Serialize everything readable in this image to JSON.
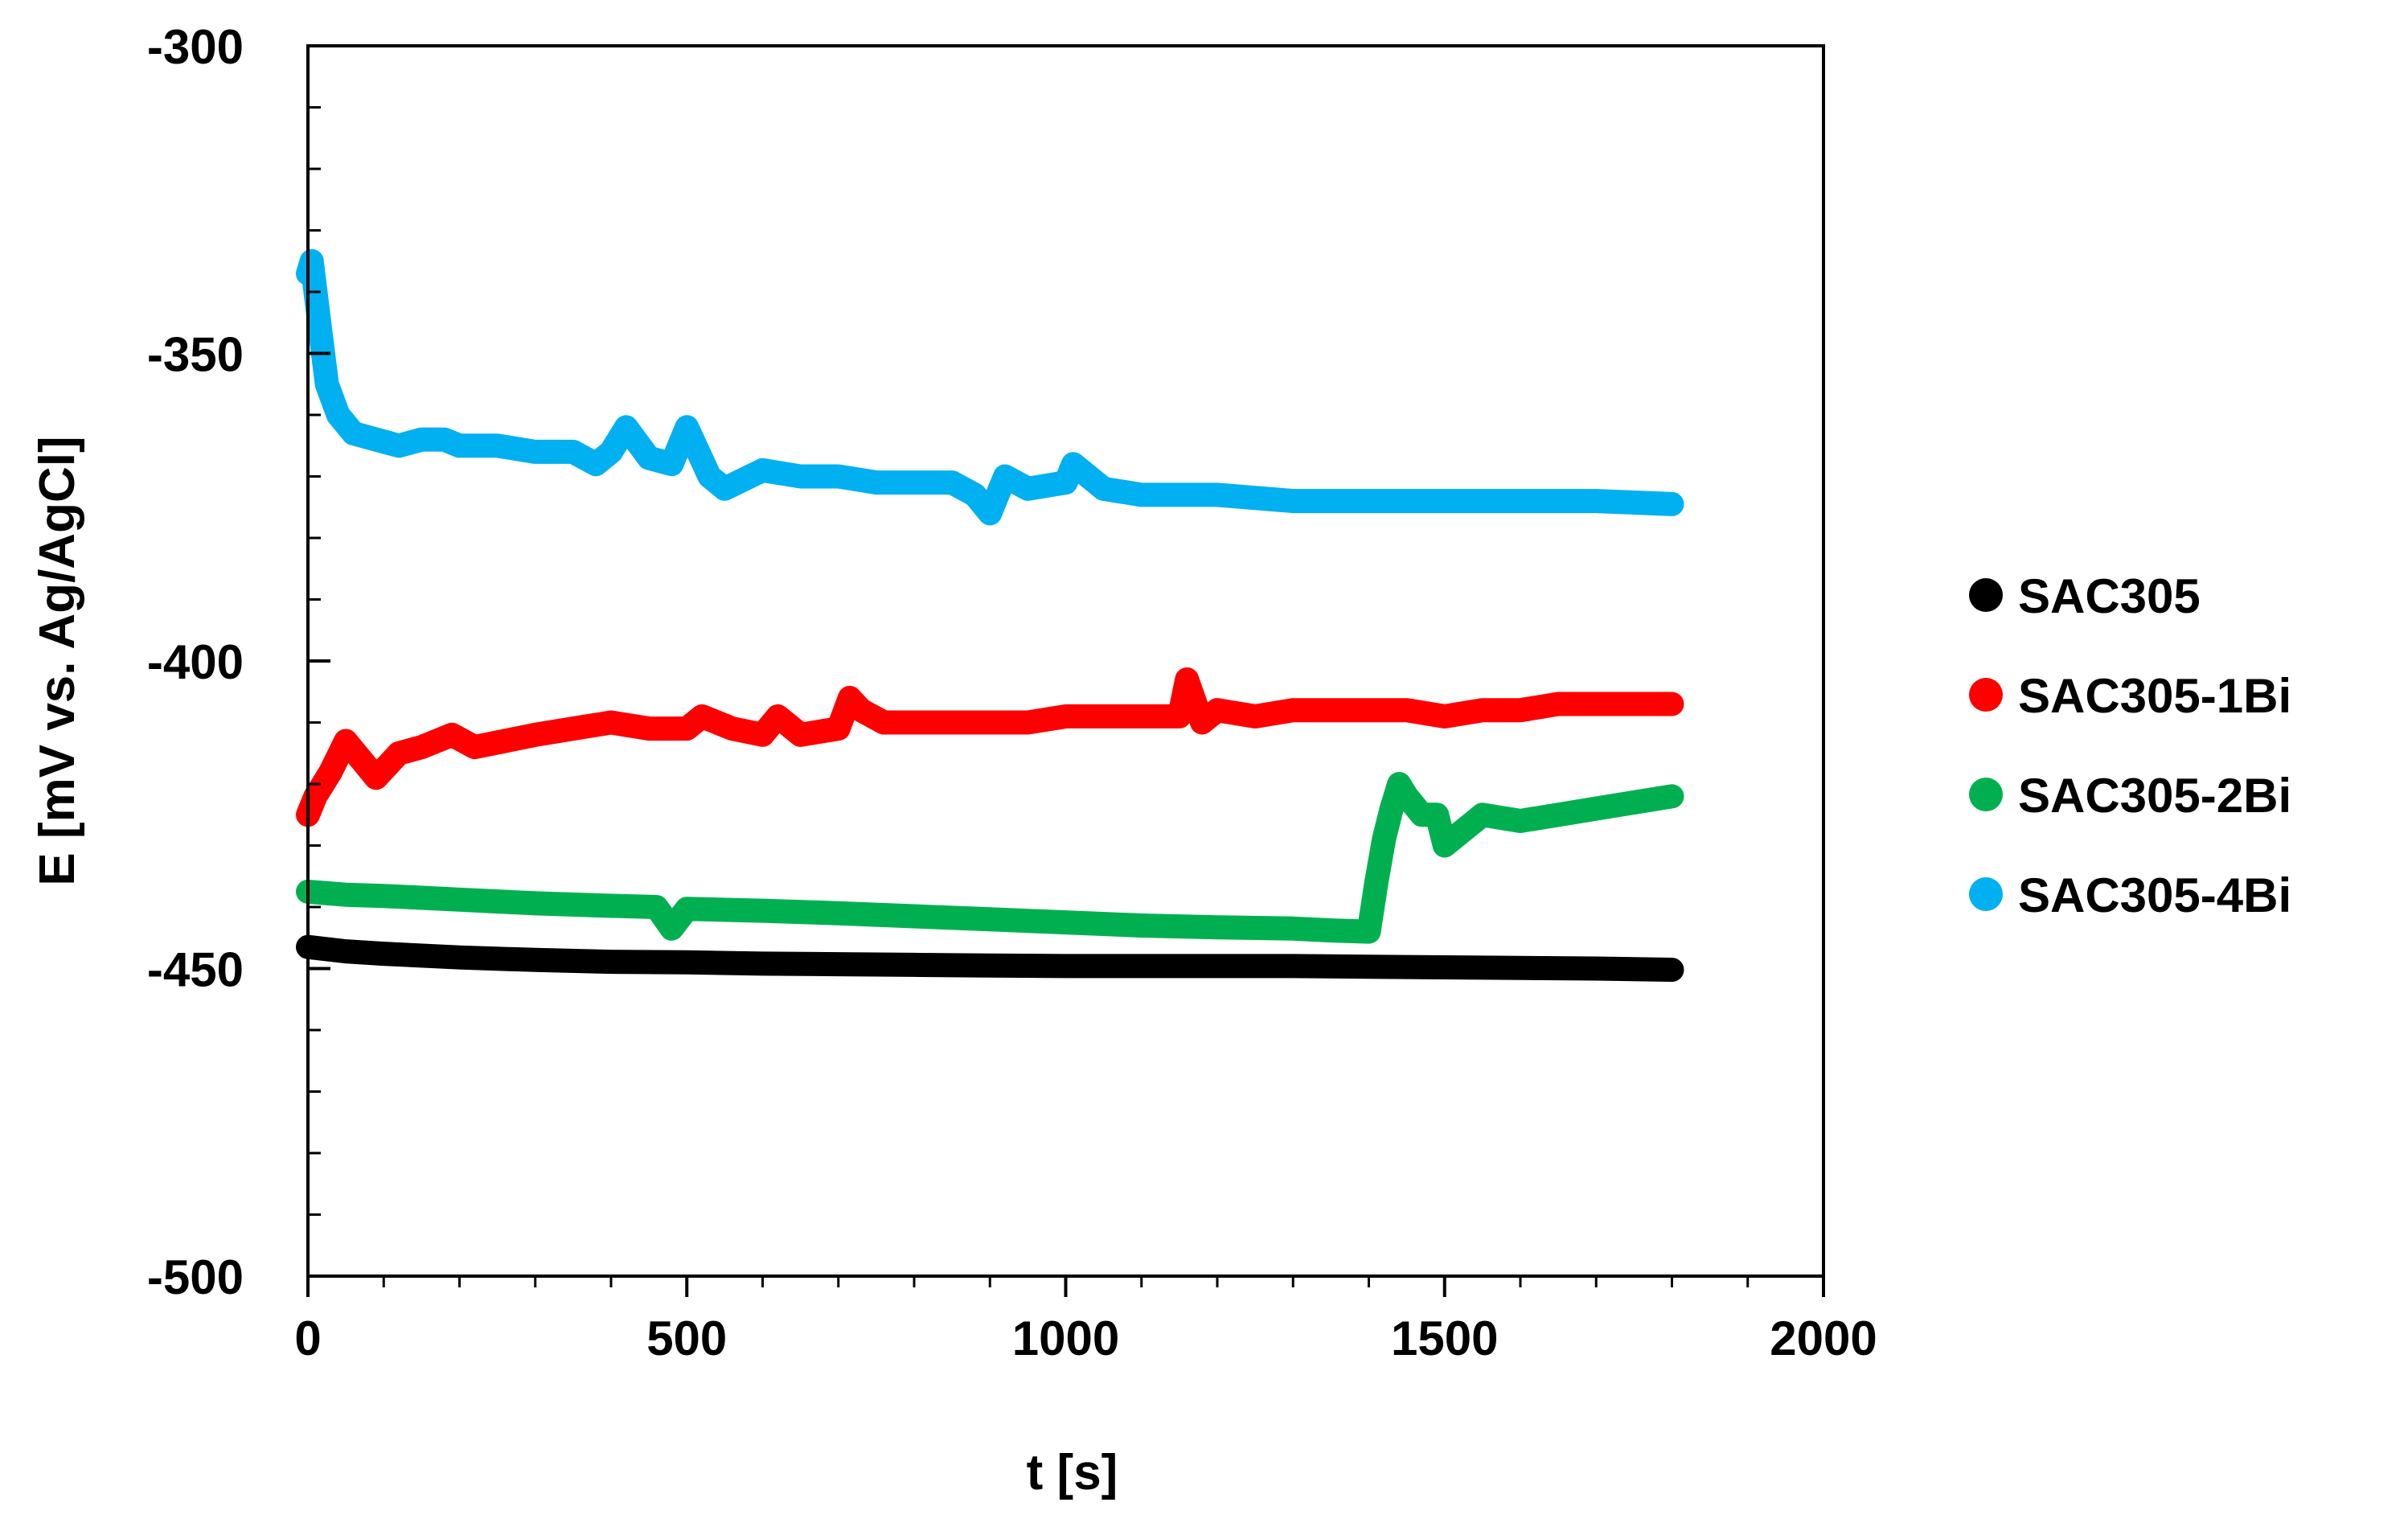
{
  "chart_data": {
    "type": "line",
    "title": "",
    "xlabel": "t [s]",
    "ylabel": "E [mV vs. Ag/AgCl]",
    "xlim": [
      0,
      2000
    ],
    "ylim": [
      -500,
      -300
    ],
    "x_ticks": [
      0,
      500,
      1000,
      1500,
      2000
    ],
    "x_tick_labels": [
      "0",
      "500",
      "1000",
      "1500",
      "2000"
    ],
    "y_ticks": [
      -300,
      -350,
      -400,
      -450,
      -500
    ],
    "y_tick_labels": [
      "-300",
      "-350",
      "-400",
      "-450",
      "-500"
    ],
    "grid": false,
    "legend_position": "right",
    "series": [
      {
        "name": "SAC305",
        "color": "#000000",
        "x": [
          0,
          50,
          100,
          200,
          300,
          400,
          500,
          600,
          700,
          800,
          900,
          1000,
          1100,
          1200,
          1300,
          1400,
          1500,
          1600,
          1700,
          1800
        ],
        "y": [
          -446.5,
          -447.2,
          -447.6,
          -448.2,
          -448.6,
          -448.9,
          -449.0,
          -449.2,
          -449.3,
          -449.4,
          -449.5,
          -449.6,
          -449.6,
          -449.6,
          -449.6,
          -449.7,
          -449.8,
          -449.9,
          -450.0,
          -450.2
        ]
      },
      {
        "name": "SAC305-1Bi",
        "color": "#ff0000",
        "x": [
          0,
          10,
          30,
          50,
          70,
          90,
          120,
          150,
          190,
          220,
          260,
          300,
          350,
          400,
          450,
          500,
          520,
          560,
          600,
          620,
          650,
          700,
          715,
          730,
          760,
          800,
          850,
          900,
          950,
          1000,
          1050,
          1100,
          1150,
          1160,
          1180,
          1200,
          1250,
          1300,
          1350,
          1400,
          1450,
          1500,
          1550,
          1600,
          1650,
          1700,
          1750,
          1800
        ],
        "y": [
          -425,
          -422,
          -418,
          -413,
          -416,
          -419,
          -415,
          -414,
          -412,
          -414,
          -413,
          -412,
          -411,
          -410,
          -411,
          -411,
          -409,
          -411,
          -412,
          -409,
          -412,
          -411,
          -406,
          -408,
          -410,
          -410,
          -410,
          -410,
          -410,
          -409,
          -409,
          -409,
          -409,
          -403,
          -410,
          -408,
          -409,
          -408,
          -408,
          -408,
          -408,
          -409,
          -408,
          -408,
          -407,
          -407,
          -407,
          -407
        ]
      },
      {
        "name": "SAC305-2Bi",
        "color": "#00b050",
        "x": [
          0,
          50,
          100,
          200,
          300,
          400,
          460,
          480,
          500,
          600,
          700,
          800,
          900,
          1000,
          1100,
          1200,
          1300,
          1350,
          1400,
          1410,
          1420,
          1430,
          1440,
          1450,
          1470,
          1490,
          1500,
          1550,
          1600,
          1650,
          1700,
          1750,
          1800
        ],
        "y": [
          -437.5,
          -438,
          -438.2,
          -438.8,
          -439.4,
          -439.8,
          -440,
          -443.5,
          -440.3,
          -440.6,
          -441,
          -441.5,
          -442,
          -442.5,
          -443,
          -443.3,
          -443.5,
          -443.8,
          -444,
          -436,
          -429,
          -424,
          -420,
          -422,
          -425,
          -425,
          -430,
          -425,
          -426,
          -425,
          -424,
          -423,
          -422
        ]
      },
      {
        "name": "SAC305-4Bi",
        "color": "#00b0f0",
        "x": [
          0,
          5,
          15,
          25,
          40,
          60,
          90,
          120,
          150,
          180,
          200,
          250,
          300,
          350,
          380,
          400,
          420,
          450,
          480,
          500,
          530,
          550,
          600,
          650,
          700,
          750,
          800,
          850,
          880,
          900,
          920,
          950,
          1000,
          1010,
          1050,
          1100,
          1150,
          1200,
          1300,
          1400,
          1500,
          1600,
          1700,
          1800
        ],
        "y": [
          -337,
          -335,
          -345,
          -355,
          -360,
          -363,
          -364,
          -365,
          -364,
          -364,
          -365,
          -365,
          -366,
          -366,
          -368,
          -366,
          -362,
          -367,
          -368,
          -362,
          -370,
          -372,
          -369,
          -370,
          -370,
          -371,
          -371,
          -371,
          -373,
          -376,
          -370,
          -372,
          -371,
          -368,
          -372,
          -373,
          -373,
          -373,
          -374,
          -374,
          -374,
          -374,
          -374,
          -374.5
        ]
      }
    ]
  }
}
